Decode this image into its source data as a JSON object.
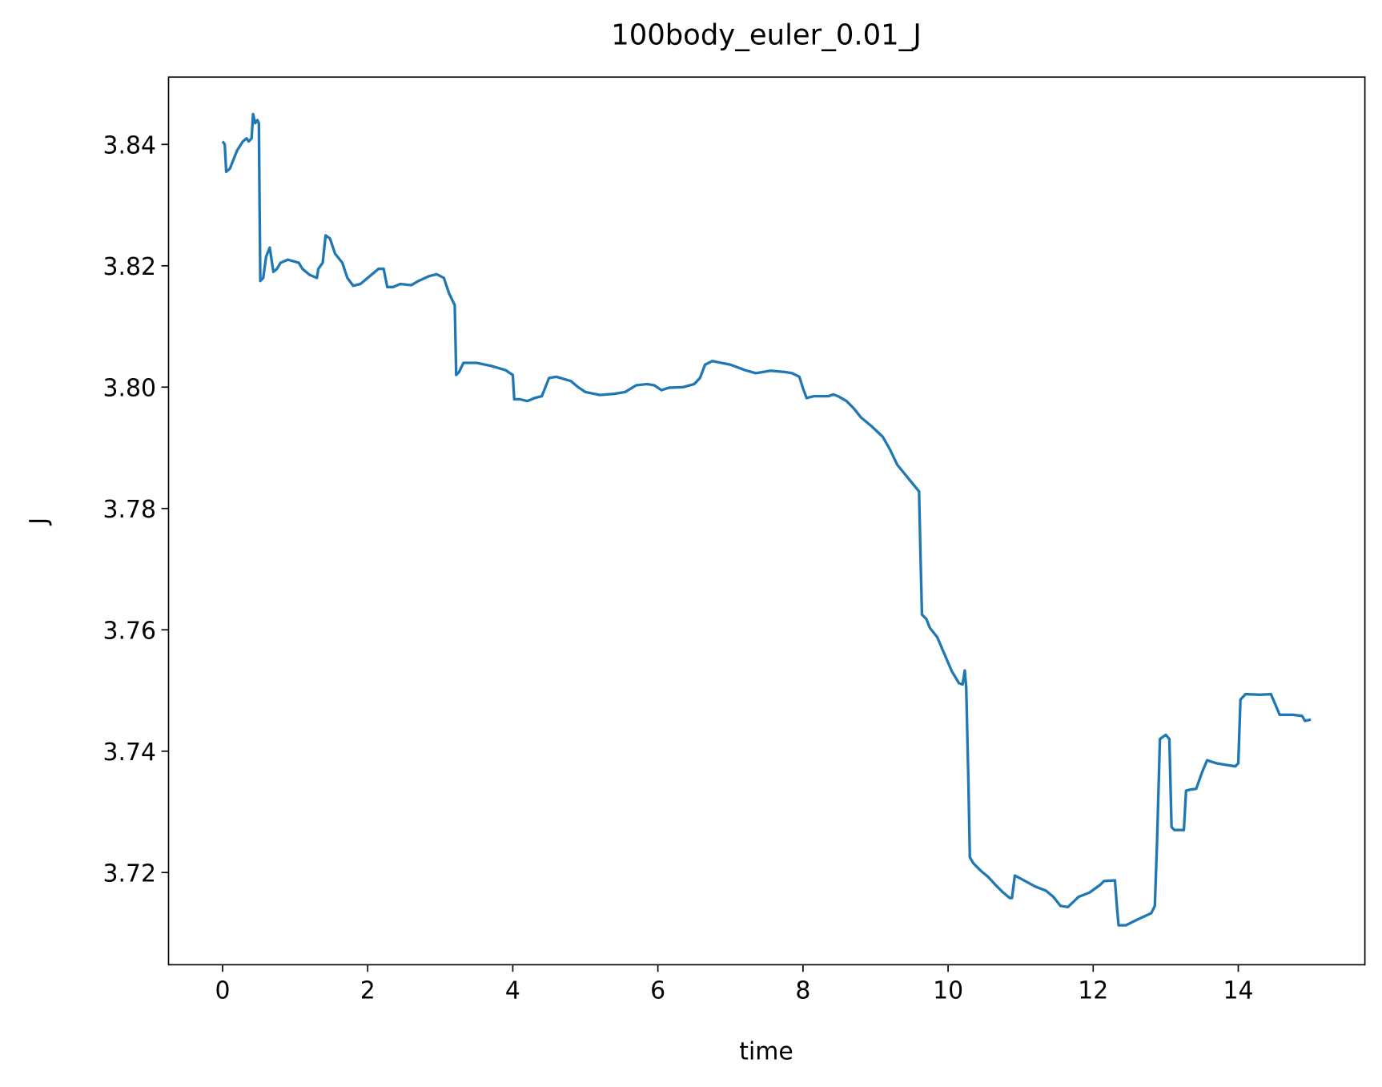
{
  "chart_data": {
    "type": "line",
    "title": "100body_euler_0.01_J",
    "x_label": "time",
    "y_label": "J",
    "color": "#1f77b4",
    "x": [
      0,
      0.03,
      0.05,
      0.1,
      0.15,
      0.2,
      0.28,
      0.33,
      0.36,
      0.4,
      0.42,
      0.45,
      0.48,
      0.5,
      0.51,
      0.52,
      0.56,
      0.6,
      0.65,
      0.7,
      0.75,
      0.8,
      0.9,
      1.05,
      1.1,
      1.2,
      1.3,
      1.32,
      1.38,
      1.42,
      1.48,
      1.55,
      1.65,
      1.72,
      1.8,
      1.9,
      2.0,
      2.15,
      2.22,
      2.27,
      2.35,
      2.45,
      2.6,
      2.7,
      2.85,
      2.95,
      3.05,
      3.12,
      3.2,
      3.22,
      3.26,
      3.32,
      3.5,
      3.7,
      3.9,
      4.0,
      4.02,
      4.1,
      4.2,
      4.3,
      4.4,
      4.5,
      4.6,
      4.8,
      4.9,
      5.0,
      5.2,
      5.4,
      5.55,
      5.7,
      5.85,
      5.95,
      6.05,
      6.15,
      6.35,
      6.5,
      6.58,
      6.65,
      6.75,
      7.0,
      7.2,
      7.35,
      7.55,
      7.75,
      7.85,
      7.95,
      8.0,
      8.05,
      8.15,
      8.25,
      8.35,
      8.42,
      8.5,
      8.6,
      8.7,
      8.8,
      8.95,
      9.1,
      9.2,
      9.3,
      9.45,
      9.6,
      9.62,
      9.64,
      9.7,
      9.75,
      9.85,
      9.95,
      10.05,
      10.15,
      10.2,
      10.23,
      10.25,
      10.28,
      10.3,
      10.35,
      10.45,
      10.55,
      10.65,
      10.75,
      10.85,
      10.88,
      10.92,
      11.0,
      11.2,
      11.35,
      11.45,
      11.55,
      11.65,
      11.8,
      11.95,
      12.1,
      12.15,
      12.3,
      12.33,
      12.35,
      12.45,
      12.6,
      12.8,
      12.85,
      12.88,
      12.92,
      13.0,
      13.05,
      13.08,
      13.12,
      13.25,
      13.28,
      13.35,
      13.42,
      13.5,
      13.57,
      13.7,
      13.85,
      13.96,
      14.0,
      14.03,
      14.1,
      14.3,
      14.45,
      14.5,
      14.57,
      14.75,
      14.88,
      14.92,
      15.0
    ],
    "values": [
      3.8405,
      3.84,
      3.8355,
      3.836,
      3.8375,
      3.839,
      3.8405,
      3.841,
      3.8405,
      3.841,
      3.845,
      3.8435,
      3.844,
      3.8435,
      3.83,
      3.8175,
      3.818,
      3.8215,
      3.823,
      3.819,
      3.8195,
      3.8205,
      3.821,
      3.8205,
      3.8195,
      3.8185,
      3.818,
      3.8195,
      3.8205,
      3.825,
      3.8245,
      3.822,
      3.8205,
      3.818,
      3.8167,
      3.817,
      3.818,
      3.8195,
      3.8195,
      3.8165,
      3.8165,
      3.817,
      3.8168,
      3.8175,
      3.8183,
      3.8186,
      3.818,
      3.8155,
      3.8135,
      3.802,
      3.8025,
      3.804,
      3.804,
      3.8035,
      3.8028,
      3.802,
      3.798,
      3.798,
      3.7977,
      3.7982,
      3.7985,
      3.8015,
      3.8017,
      3.801,
      3.8,
      3.7992,
      3.7987,
      3.7989,
      3.7992,
      3.8003,
      3.8005,
      3.8003,
      3.7995,
      3.7999,
      3.8,
      3.8005,
      3.8015,
      3.8037,
      3.8043,
      3.8037,
      3.8028,
      3.8023,
      3.8027,
      3.8025,
      3.8023,
      3.8017,
      3.7998,
      3.7982,
      3.7985,
      3.7985,
      3.7985,
      3.7988,
      3.7984,
      3.7977,
      3.7965,
      3.795,
      3.7935,
      3.7918,
      3.7897,
      3.7872,
      3.785,
      3.7828,
      3.772,
      3.7625,
      3.7618,
      3.7603,
      3.7588,
      3.756,
      3.7532,
      3.7512,
      3.751,
      3.7533,
      3.7505,
      3.735,
      3.7225,
      3.7215,
      3.7203,
      3.7193,
      3.718,
      3.7168,
      3.7158,
      3.7158,
      3.7195,
      3.719,
      3.7177,
      3.717,
      3.716,
      3.7145,
      3.7143,
      3.716,
      3.7167,
      3.718,
      3.7186,
      3.7187,
      3.714,
      3.7113,
      3.7113,
      3.7122,
      3.7133,
      3.7145,
      3.725,
      3.742,
      3.7427,
      3.742,
      3.7275,
      3.727,
      3.727,
      3.7335,
      3.7337,
      3.7338,
      3.7365,
      3.7385,
      3.738,
      3.7377,
      3.7375,
      3.738,
      3.7485,
      3.7494,
      3.7493,
      3.7494,
      3.748,
      3.746,
      3.746,
      3.7458,
      3.745,
      3.7452
    ],
    "xlim": [
      -0.745,
      15.745
    ],
    "xticks": [
      0,
      2,
      4,
      6,
      8,
      10,
      12,
      14
    ],
    "ylim": [
      3.7048,
      3.8511
    ],
    "yticks": [
      3.72,
      3.74,
      3.76,
      3.78,
      {
        "value": 3.8,
        "label": "3.80"
      },
      3.82,
      3.84
    ]
  }
}
